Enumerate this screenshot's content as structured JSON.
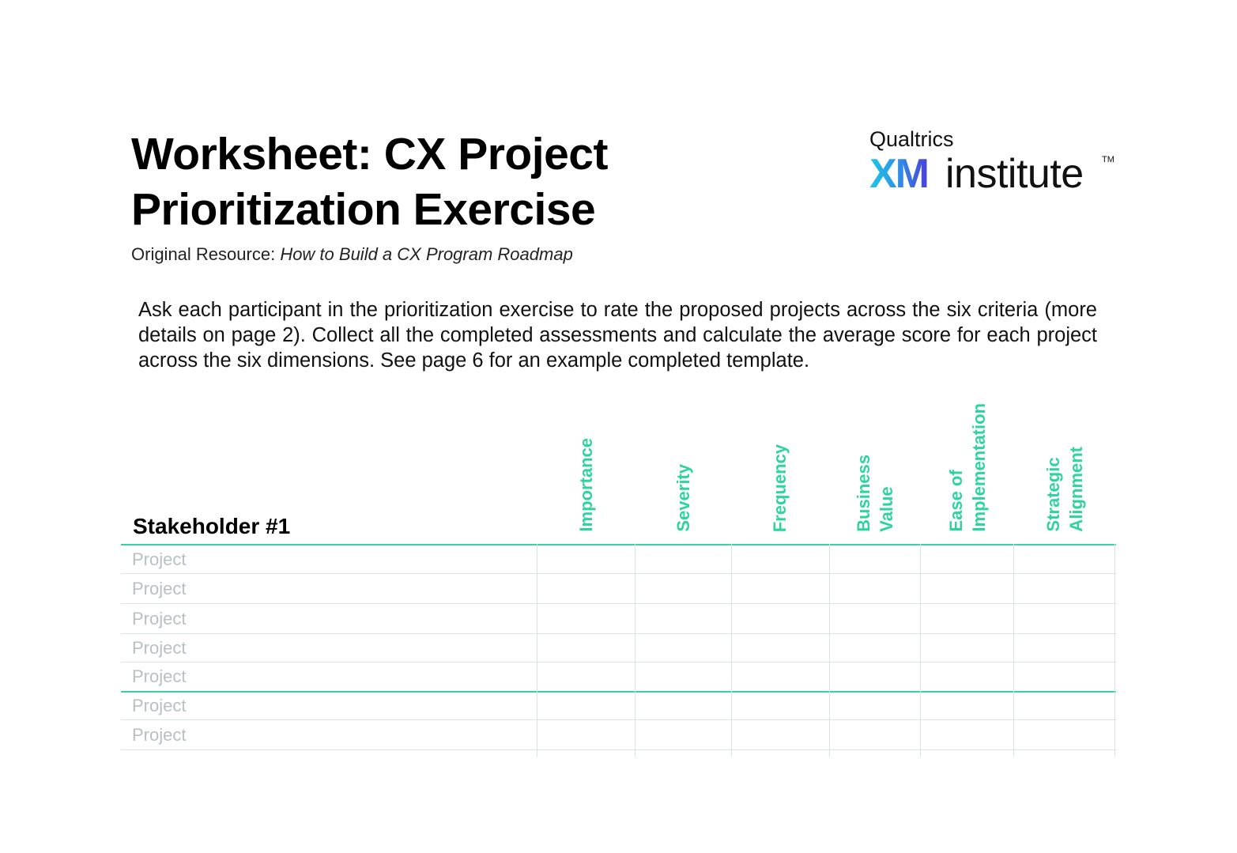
{
  "header": {
    "title_line1": "Worksheet: CX Project",
    "title_line2": "Prioritization Exercise",
    "source_prefix": "Original Resource: ",
    "source_title": "How to Build a CX Program Roadmap"
  },
  "logo": {
    "top": "Qualtrics",
    "xm": "XM",
    "word": "institute",
    "tm": "TM"
  },
  "instructions": "Ask each participant in the prioritization exercise to rate the proposed projects across the six criteria (more details on page 2). Collect all the completed assessments and calculate the average score for each project across the six dimensions. See page 6 for an example completed template.",
  "table": {
    "stakeholder_label": "Stakeholder #1",
    "columns": [
      {
        "line1": "Importance",
        "line2": ""
      },
      {
        "line1": "Severity",
        "line2": ""
      },
      {
        "line1": "Frequency",
        "line2": ""
      },
      {
        "line1": "Business",
        "line2": "Value"
      },
      {
        "line1": "Ease of",
        "line2": "Implementation"
      },
      {
        "line1": "Strategic",
        "line2": "Alignment"
      }
    ],
    "rows": [
      "Project",
      "Project",
      "Project",
      "Project",
      "Project",
      "Project",
      "Project"
    ]
  },
  "colors": {
    "accent": "#2ed3a0",
    "grid": "#d9e2e4",
    "placeholder_text": "#b9c0c3"
  }
}
